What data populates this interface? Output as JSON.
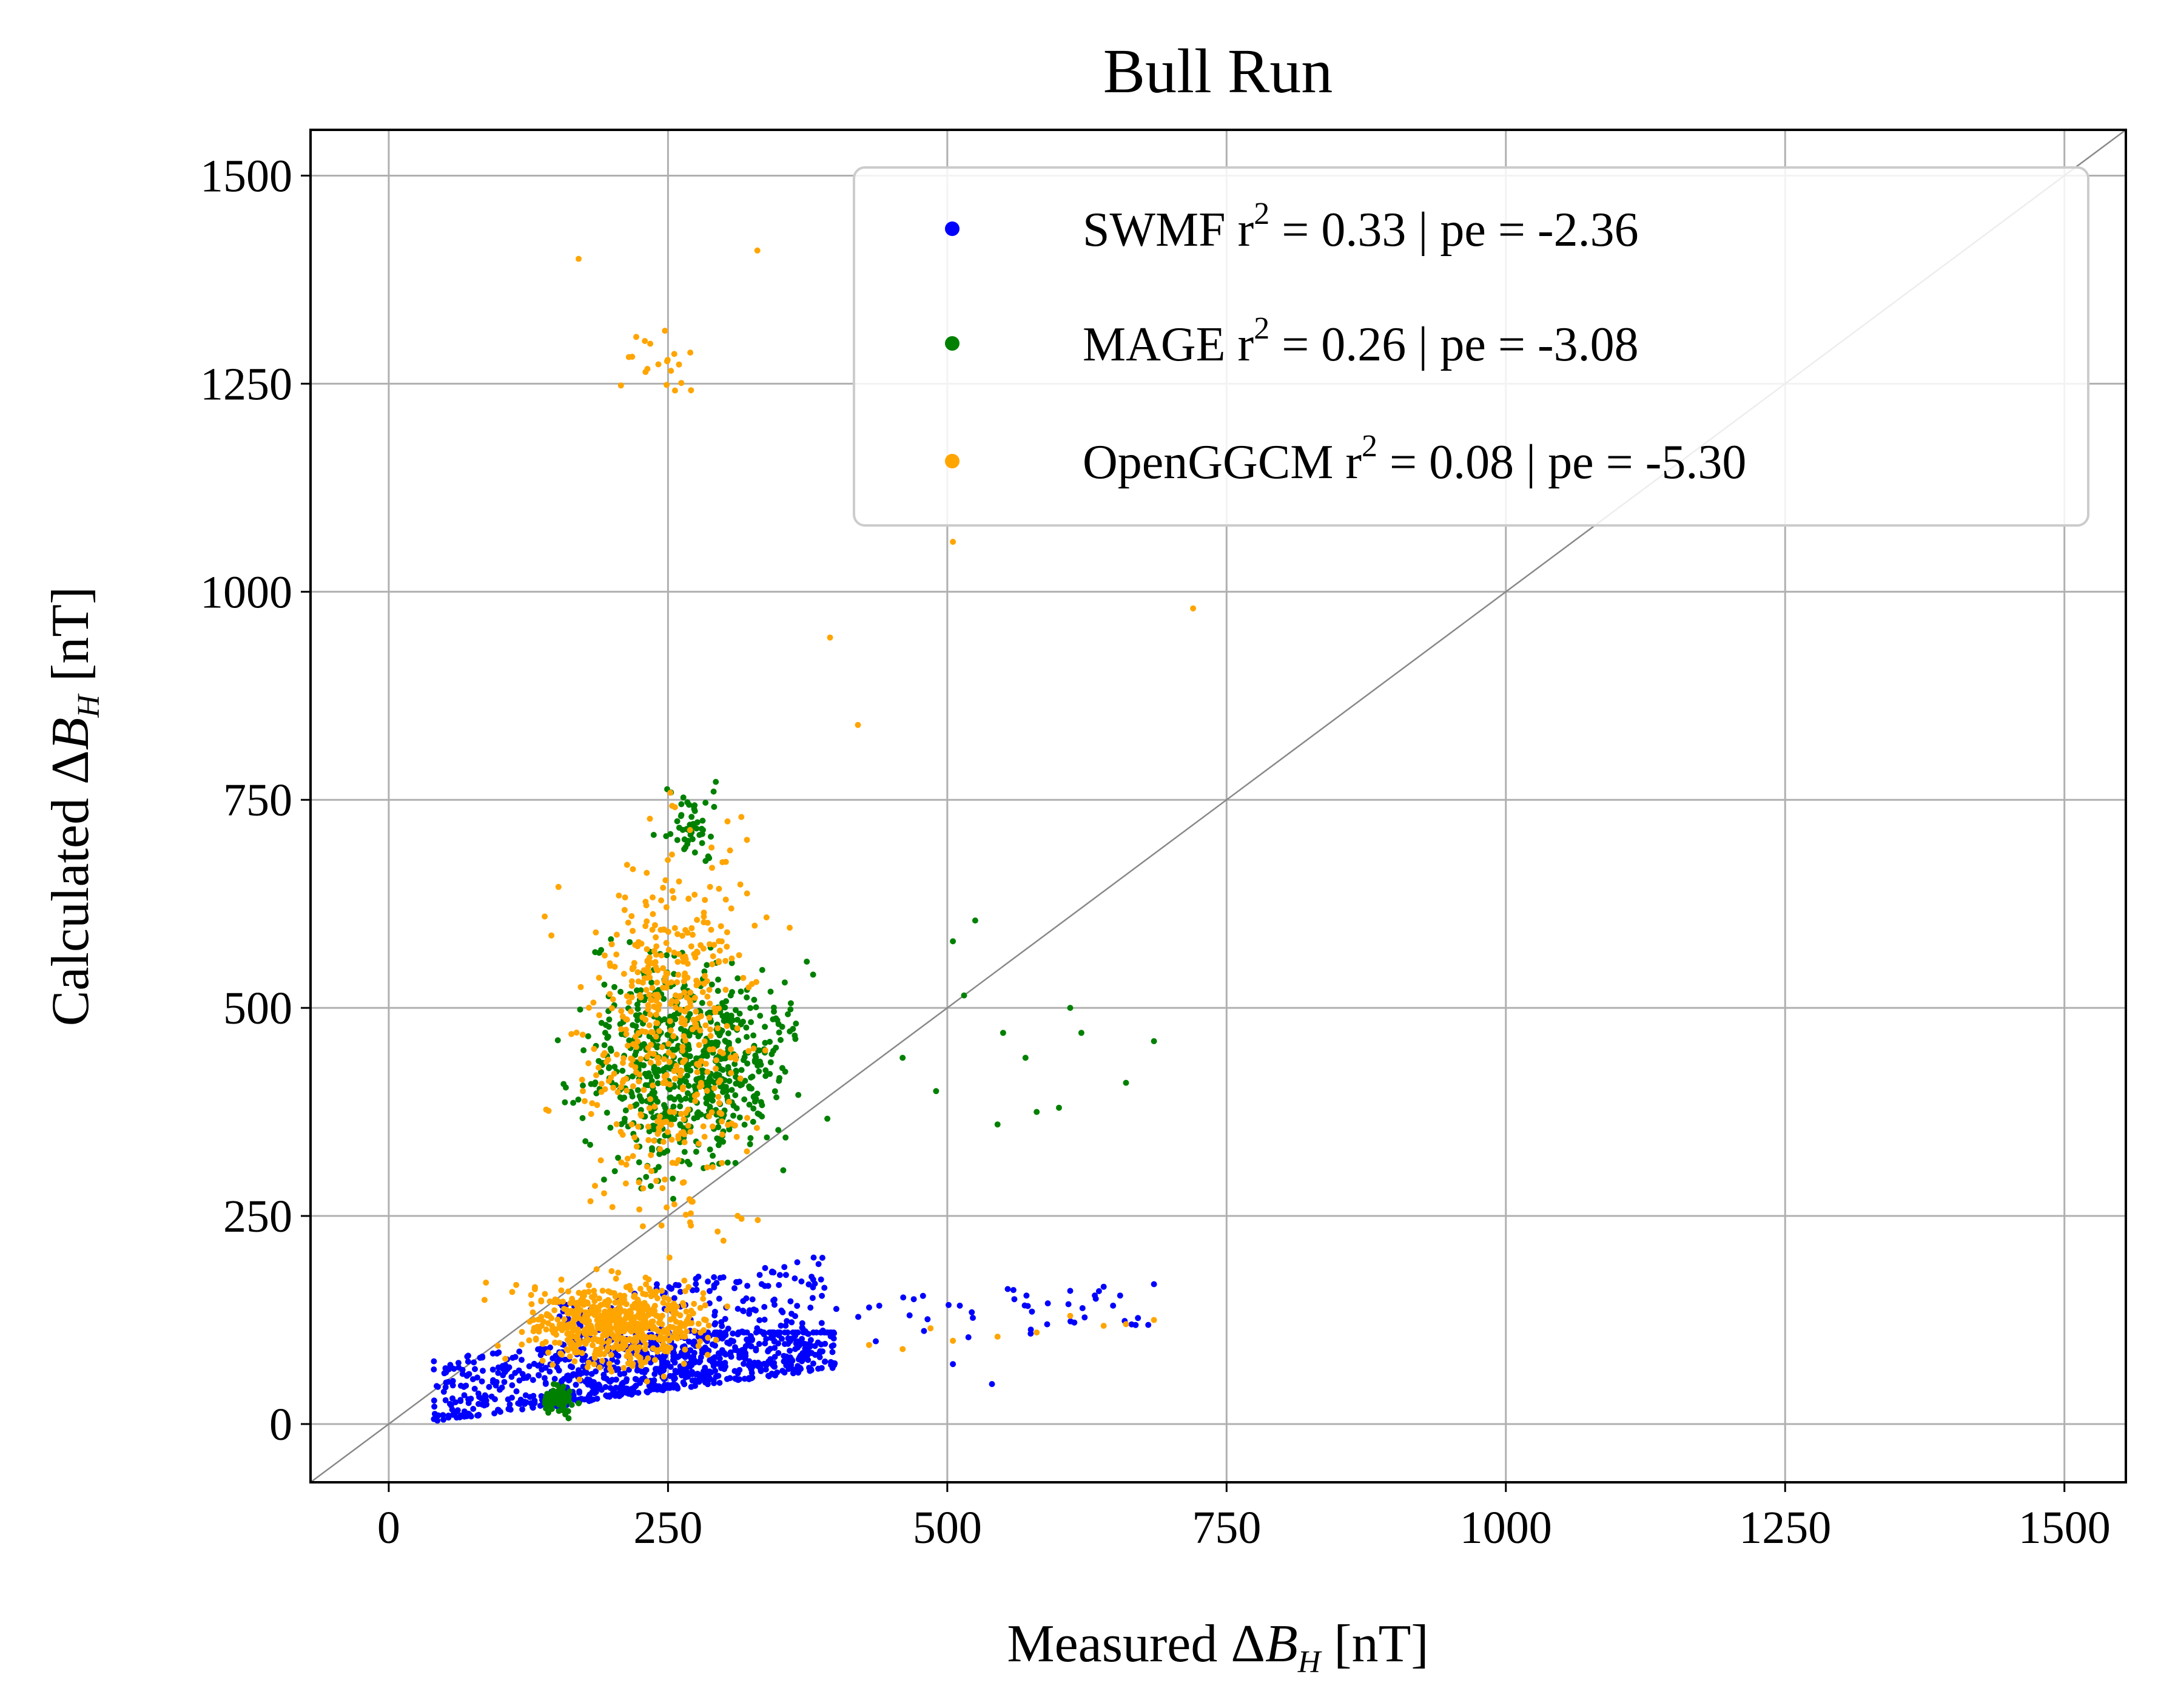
{
  "chart_data": {
    "type": "scatter",
    "title": "Bull Run",
    "xlabel": {
      "prefix": "Measured ",
      "delta": "Δ",
      "var": "B",
      "sub": "H",
      "suffix": " [nT]"
    },
    "ylabel": {
      "prefix": "Calculated ",
      "delta": "Δ",
      "var": "B",
      "sub": "H",
      "suffix": " [nT]"
    },
    "xlim": [
      -70,
      1555
    ],
    "ylim": [
      -70,
      1555
    ],
    "xticks": [
      0,
      250,
      500,
      750,
      1000,
      1250,
      1500
    ],
    "yticks": [
      0,
      250,
      500,
      750,
      1000,
      1250,
      1500
    ],
    "grid": true,
    "legend_position": "top-right",
    "reference_line": "y = x",
    "series": [
      {
        "name": "SWMF",
        "legend": {
          "prefix": "SWMF r",
          "sup": "2",
          "suffix": " = 0.33 | pe = -2.36"
        },
        "color": "#0000ff",
        "clusters": [
          {
            "x": [
              40,
              400
            ],
            "y": [
              3,
              110
            ],
            "n": 700,
            "trend": 0.18
          },
          {
            "x": [
              150,
              390
            ],
            "y": [
              20,
              200
            ],
            "n": 350,
            "trend": 0.25
          },
          {
            "x": [
              390,
              690
            ],
            "y": [
              90,
              170
            ],
            "n": 40,
            "trend": 0.1
          }
        ],
        "points": [
          [
            540,
            48
          ],
          [
            505,
            72
          ],
          [
            610,
            160
          ],
          [
            640,
            165
          ],
          [
            685,
            168
          ],
          [
            560,
            150
          ],
          [
            590,
            145
          ],
          [
            470,
            150
          ],
          [
            430,
            140
          ]
        ]
      },
      {
        "name": "MAGE",
        "legend": {
          "prefix": "MAGE r",
          "sup": "2",
          "suffix": " = 0.26 | pe = -3.08"
        },
        "color": "#008000",
        "clusters": [
          {
            "x": [
              60,
              470
            ],
            "y": [
              150,
              700
            ],
            "n": 700,
            "center": [
              270,
              430
            ]
          },
          {
            "x": [
              120,
              180
            ],
            "y": [
              5,
              80
            ],
            "n": 80,
            "center": [
              150,
              30
            ]
          },
          {
            "x": [
              230,
              330
            ],
            "y": [
              650,
              900
            ],
            "n": 50,
            "center": [
              270,
              720
            ]
          }
        ],
        "points": [
          [
            685,
            460
          ],
          [
            660,
            410
          ],
          [
            610,
            500
          ],
          [
            600,
            380
          ],
          [
            580,
            375
          ],
          [
            545,
            360
          ],
          [
            550,
            470
          ],
          [
            505,
            580
          ],
          [
            525,
            605
          ],
          [
            490,
            400
          ],
          [
            460,
            440
          ],
          [
            515,
            515
          ],
          [
            620,
            470
          ],
          [
            570,
            440
          ]
        ]
      },
      {
        "name": "OpenGGCM",
        "legend": {
          "prefix": "OpenGGCM r",
          "sup": "2",
          "suffix": " = 0.08 | pe = -5.30"
        },
        "color": "#ffa500",
        "clusters": [
          {
            "x": [
              40,
              390
            ],
            "y": [
              10,
              220
            ],
            "n": 600,
            "center": [
              200,
              120
            ]
          },
          {
            "x": [
              80,
              440
            ],
            "y": [
              200,
              1150
            ],
            "n": 500,
            "center": [
              250,
              480
            ]
          },
          {
            "x": [
              150,
              330
            ],
            "y": [
              1150,
              1410
            ],
            "n": 20,
            "center": [
              240,
              1280
            ]
          }
        ],
        "points": [
          [
            685,
            125
          ],
          [
            660,
            120
          ],
          [
            640,
            118
          ],
          [
            610,
            130
          ],
          [
            580,
            110
          ],
          [
            545,
            105
          ],
          [
            505,
            100
          ],
          [
            485,
            115
          ],
          [
            460,
            90
          ],
          [
            430,
            95
          ],
          [
            720,
            980
          ],
          [
            505,
            1060
          ],
          [
            330,
            1410
          ],
          [
            170,
            1400
          ],
          [
            420,
            840
          ],
          [
            395,
            945
          ]
        ]
      }
    ]
  }
}
